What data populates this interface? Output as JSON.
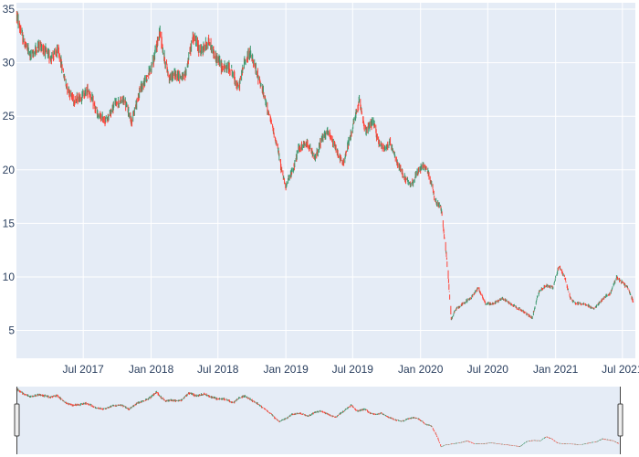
{
  "chart_data": {
    "type": "candlestick",
    "title": "",
    "xlabel": "",
    "ylabel": "",
    "x_range": [
      "2017-01-01",
      "2021-08-05"
    ],
    "ylim": [
      2.4,
      35.6
    ],
    "y_ticks": [
      5,
      10,
      15,
      20,
      25,
      30,
      35
    ],
    "y_tick_labels": [
      "5",
      "10",
      "15",
      "20",
      "25",
      "30",
      "35"
    ],
    "x_ticks": [
      "2017-07-01",
      "2018-01-01",
      "2018-07-01",
      "2019-01-01",
      "2019-07-01",
      "2020-01-01",
      "2020-07-01",
      "2021-01-01",
      "2021-07-01"
    ],
    "x_tick_labels": [
      "Jul 2017",
      "Jan 2018",
      "Jul 2018",
      "Jan 2019",
      "Jul 2019",
      "Jan 2020",
      "Jul 2020",
      "Jan 2021",
      "Jul 2021"
    ],
    "grid": true,
    "rangeslider": true,
    "colors": {
      "increasing": "#3d9970",
      "decreasing": "#ff4136",
      "plot_background": "#e5ecf6",
      "gridline": "#ffffff",
      "tick_text": "#2a3f5f"
    },
    "price_path": [
      [
        "2017-01-01",
        34.5
      ],
      [
        "2017-01-20",
        32.0
      ],
      [
        "2017-02-10",
        30.6
      ],
      [
        "2017-03-05",
        31.8
      ],
      [
        "2017-04-01",
        30.5
      ],
      [
        "2017-04-25",
        31.0
      ],
      [
        "2017-05-15",
        28.0
      ],
      [
        "2017-06-05",
        26.5
      ],
      [
        "2017-06-25",
        26.8
      ],
      [
        "2017-07-15",
        27.5
      ],
      [
        "2017-08-10",
        25.0
      ],
      [
        "2017-09-01",
        24.6
      ],
      [
        "2017-09-25",
        26.2
      ],
      [
        "2017-10-20",
        26.5
      ],
      [
        "2017-11-10",
        24.5
      ],
      [
        "2017-12-01",
        27.5
      ],
      [
        "2017-12-20",
        28.5
      ],
      [
        "2018-01-10",
        30.5
      ],
      [
        "2018-01-25",
        33.0
      ],
      [
        "2018-02-05",
        30.5
      ],
      [
        "2018-02-20",
        28.5
      ],
      [
        "2018-03-10",
        29.0
      ],
      [
        "2018-04-01",
        28.5
      ],
      [
        "2018-04-25",
        32.5
      ],
      [
        "2018-05-15",
        31.0
      ],
      [
        "2018-06-05",
        32.0
      ],
      [
        "2018-06-25",
        30.5
      ],
      [
        "2018-07-15",
        29.5
      ],
      [
        "2018-08-05",
        29.5
      ],
      [
        "2018-08-25",
        27.5
      ],
      [
        "2018-09-10",
        30.0
      ],
      [
        "2018-09-25",
        31.0
      ],
      [
        "2018-10-10",
        29.5
      ],
      [
        "2018-10-25",
        28.0
      ],
      [
        "2018-11-10",
        26.0
      ],
      [
        "2018-11-25",
        24.0
      ],
      [
        "2018-12-10",
        22.0
      ],
      [
        "2018-12-20",
        20.0
      ],
      [
        "2019-01-01",
        18.5
      ],
      [
        "2019-01-20",
        20.0
      ],
      [
        "2019-02-05",
        22.0
      ],
      [
        "2019-03-01",
        22.5
      ],
      [
        "2019-03-20",
        21.0
      ],
      [
        "2019-04-10",
        23.0
      ],
      [
        "2019-04-25",
        23.5
      ],
      [
        "2019-05-15",
        22.0
      ],
      [
        "2019-06-05",
        20.5
      ],
      [
        "2019-06-20",
        22.5
      ],
      [
        "2019-07-05",
        24.5
      ],
      [
        "2019-07-20",
        26.5
      ],
      [
        "2019-08-05",
        23.5
      ],
      [
        "2019-08-25",
        24.5
      ],
      [
        "2019-09-10",
        22.5
      ],
      [
        "2019-09-25",
        22.0
      ],
      [
        "2019-10-10",
        22.5
      ],
      [
        "2019-10-25",
        21.0
      ],
      [
        "2019-11-15",
        19.5
      ],
      [
        "2019-12-05",
        18.5
      ],
      [
        "2019-12-20",
        19.5
      ],
      [
        "2020-01-10",
        20.5
      ],
      [
        "2020-01-25",
        19.5
      ],
      [
        "2020-02-10",
        17.0
      ],
      [
        "2020-02-25",
        16.5
      ],
      [
        "2020-03-08",
        13.0
      ],
      [
        "2020-03-16",
        10.0
      ],
      [
        "2020-03-24",
        6.0
      ],
      [
        "2020-04-05",
        7.0
      ],
      [
        "2020-04-25",
        7.5
      ],
      [
        "2020-05-15",
        8.0
      ],
      [
        "2020-06-05",
        9.0
      ],
      [
        "2020-06-25",
        7.5
      ],
      [
        "2020-07-15",
        7.5
      ],
      [
        "2020-08-10",
        8.0
      ],
      [
        "2020-09-01",
        7.5
      ],
      [
        "2020-09-25",
        7.0
      ],
      [
        "2020-10-15",
        6.5
      ],
      [
        "2020-10-30",
        6.2
      ],
      [
        "2020-11-15",
        8.5
      ],
      [
        "2020-12-05",
        9.2
      ],
      [
        "2020-12-25",
        9.0
      ],
      [
        "2021-01-10",
        11.0
      ],
      [
        "2021-01-25",
        10.0
      ],
      [
        "2021-02-10",
        8.0
      ],
      [
        "2021-02-25",
        7.5
      ],
      [
        "2021-03-20",
        7.5
      ],
      [
        "2021-04-15",
        7.0
      ],
      [
        "2021-05-10",
        8.0
      ],
      [
        "2021-05-30",
        8.5
      ],
      [
        "2021-06-15",
        10.0
      ],
      [
        "2021-06-30",
        9.5
      ],
      [
        "2021-07-15",
        9.0
      ],
      [
        "2021-08-01",
        7.5
      ]
    ]
  }
}
